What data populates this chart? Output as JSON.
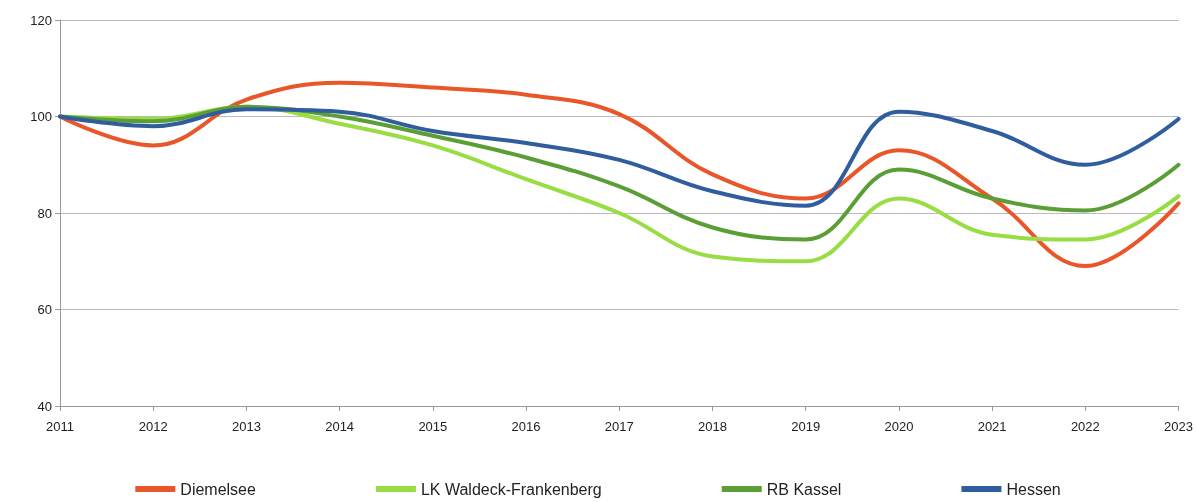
{
  "chart_data": {
    "type": "line",
    "categories": [
      "2011",
      "2012",
      "2013",
      "2014",
      "2015",
      "2016",
      "2017",
      "2018",
      "2019",
      "2020",
      "2021",
      "2022",
      "2023"
    ],
    "series": [
      {
        "name": "Diemelsee",
        "color": "#e8562a",
        "values": [
          100,
          94,
          103.5,
          107,
          106,
          104.5,
          100.5,
          88,
          83,
          93,
          83,
          69,
          82
        ]
      },
      {
        "name": "LK Waldeck-Frankenberg",
        "color": "#99dd44",
        "values": [
          100,
          99.5,
          102,
          98.5,
          94,
          87,
          80,
          71,
          70,
          83,
          75.5,
          74.5,
          83.5
        ]
      },
      {
        "name": "RB Kassel",
        "color": "#5a9e35",
        "values": [
          100,
          99,
          102,
          100,
          96,
          91.5,
          85.5,
          77,
          74.5,
          89,
          83,
          80.5,
          90
        ]
      },
      {
        "name": "Hessen",
        "color": "#2f5d9e",
        "values": [
          100,
          98,
          101.5,
          101,
          97,
          94.5,
          91,
          84.5,
          81.5,
          101,
          97,
          90,
          99.5
        ]
      }
    ],
    "ylim": [
      40,
      120
    ],
    "yticks": [
      40,
      60,
      80,
      100,
      120
    ],
    "grid": "y",
    "legend": "bottom",
    "marker": "none",
    "line_style": "solid"
  }
}
